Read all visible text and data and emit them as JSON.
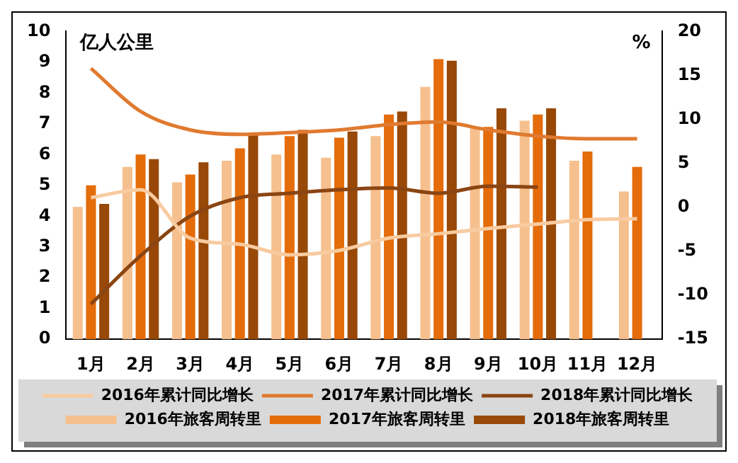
{
  "chart_data": {
    "type": "bar",
    "ylabel": "亿人公里",
    "y2label": "%",
    "categories": [
      "1月",
      "2月",
      "3月",
      "4月",
      "5月",
      "6月",
      "7月",
      "8月",
      "9月",
      "10月",
      "11月",
      "12月"
    ],
    "series": [
      {
        "name": "2016年旅客周转里",
        "color": "#f5c08e",
        "values": [
          4.3,
          5.6,
          5.1,
          5.8,
          6.0,
          5.9,
          6.6,
          8.2,
          6.9,
          7.1,
          5.8,
          4.8
        ]
      },
      {
        "name": "2017年旅客周转里",
        "color": "#e46c0a",
        "values": [
          5.0,
          6.0,
          5.35,
          6.2,
          6.6,
          6.55,
          7.3,
          9.1,
          6.9,
          7.3,
          6.1,
          5.6
        ]
      },
      {
        "name": "2018年旅客周转里",
        "color": "#984807",
        "values": [
          4.4,
          5.85,
          5.75,
          6.65,
          6.8,
          6.75,
          7.4,
          9.05,
          7.5,
          7.5,
          null,
          null
        ]
      },
      {
        "name": "2016年累计同比增长",
        "type": "line",
        "axis": "y2",
        "color": "#f8cba0",
        "values": [
          1.1,
          2.0,
          -3.5,
          -4.2,
          -5.4,
          -4.9,
          -3.5,
          -3.0,
          -2.4,
          -1.9,
          -1.4,
          -1.3
        ]
      },
      {
        "name": "2017年累计同比增长",
        "type": "line",
        "axis": "y2",
        "color": "#e07a30",
        "values": [
          15.8,
          10.9,
          8.8,
          8.3,
          8.5,
          8.8,
          9.4,
          9.7,
          8.8,
          8.1,
          7.8,
          7.8
        ]
      },
      {
        "name": "2018年累计同比增长",
        "type": "line",
        "axis": "y2",
        "color": "#8b4513",
        "values": [
          -11.0,
          -5.5,
          -1.0,
          1.1,
          1.6,
          2.0,
          2.2,
          1.6,
          2.4,
          2.3,
          null,
          null
        ]
      }
    ],
    "ylim": [
      0,
      10
    ],
    "yticks": [
      0,
      1,
      2,
      3,
      4,
      5,
      6,
      7,
      8,
      9,
      10
    ],
    "y2lim": [
      -15,
      20
    ],
    "y2ticks": [
      -15,
      -10,
      -5,
      0,
      5,
      10,
      15,
      20
    ],
    "grid": false,
    "legend": "bottom",
    "marker": "none",
    "line_style": "solid"
  }
}
